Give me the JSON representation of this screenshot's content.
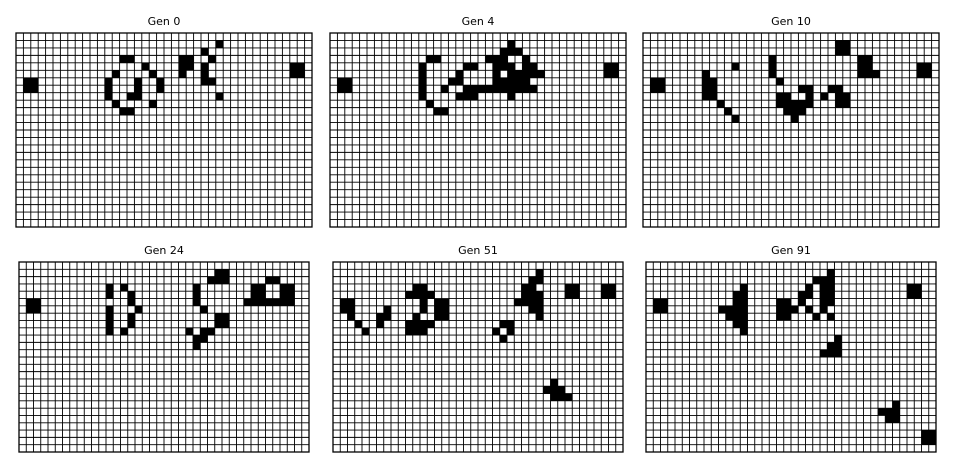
{
  "grid": {
    "cols": 40,
    "rows": 26,
    "alive_color": "#000000",
    "dead_color": "#ffffff",
    "line_color": "#000000"
  },
  "panels": [
    {
      "title": "Gen 0",
      "cells": [
        [
          27,
          1
        ],
        [
          25,
          2
        ],
        [
          14,
          3
        ],
        [
          15,
          3
        ],
        [
          22,
          3
        ],
        [
          23,
          3
        ],
        [
          26,
          3
        ],
        [
          17,
          4
        ],
        [
          22,
          4
        ],
        [
          23,
          4
        ],
        [
          25,
          4
        ],
        [
          37,
          4
        ],
        [
          38,
          4
        ],
        [
          13,
          5
        ],
        [
          18,
          5
        ],
        [
          22,
          5
        ],
        [
          25,
          5
        ],
        [
          37,
          5
        ],
        [
          38,
          5
        ],
        [
          1,
          6
        ],
        [
          2,
          6
        ],
        [
          12,
          6
        ],
        [
          16,
          6
        ],
        [
          19,
          6
        ],
        [
          25,
          6
        ],
        [
          26,
          6
        ],
        [
          1,
          7
        ],
        [
          2,
          7
        ],
        [
          12,
          7
        ],
        [
          16,
          7
        ],
        [
          19,
          7
        ],
        [
          12,
          8
        ],
        [
          15,
          8
        ],
        [
          16,
          8
        ],
        [
          27,
          8
        ],
        [
          13,
          9
        ],
        [
          18,
          9
        ],
        [
          14,
          10
        ],
        [
          15,
          10
        ]
      ]
    },
    {
      "title": "Gen 4",
      "cells": [
        [
          24,
          1
        ],
        [
          23,
          2
        ],
        [
          24,
          2
        ],
        [
          25,
          2
        ],
        [
          13,
          3
        ],
        [
          14,
          3
        ],
        [
          21,
          3
        ],
        [
          22,
          3
        ],
        [
          23,
          3
        ],
        [
          26,
          3
        ],
        [
          12,
          4
        ],
        [
          18,
          4
        ],
        [
          19,
          4
        ],
        [
          22,
          4
        ],
        [
          23,
          4
        ],
        [
          24,
          4
        ],
        [
          26,
          4
        ],
        [
          27,
          4
        ],
        [
          37,
          4
        ],
        [
          38,
          4
        ],
        [
          12,
          5
        ],
        [
          17,
          5
        ],
        [
          22,
          5
        ],
        [
          24,
          5
        ],
        [
          25,
          5
        ],
        [
          26,
          5
        ],
        [
          27,
          5
        ],
        [
          28,
          5
        ],
        [
          37,
          5
        ],
        [
          38,
          5
        ],
        [
          1,
          6
        ],
        [
          2,
          6
        ],
        [
          12,
          6
        ],
        [
          16,
          6
        ],
        [
          17,
          6
        ],
        [
          22,
          6
        ],
        [
          23,
          6
        ],
        [
          24,
          6
        ],
        [
          25,
          6
        ],
        [
          26,
          6
        ],
        [
          1,
          7
        ],
        [
          2,
          7
        ],
        [
          12,
          7
        ],
        [
          15,
          7
        ],
        [
          18,
          7
        ],
        [
          19,
          7
        ],
        [
          20,
          7
        ],
        [
          21,
          7
        ],
        [
          22,
          7
        ],
        [
          23,
          7
        ],
        [
          24,
          7
        ],
        [
          25,
          7
        ],
        [
          26,
          7
        ],
        [
          27,
          7
        ],
        [
          12,
          8
        ],
        [
          17,
          8
        ],
        [
          18,
          8
        ],
        [
          19,
          8
        ],
        [
          24,
          8
        ],
        [
          13,
          9
        ],
        [
          14,
          10
        ],
        [
          15,
          10
        ]
      ]
    },
    {
      "title": "Gen 10",
      "cells": [
        [
          26,
          1
        ],
        [
          27,
          1
        ],
        [
          26,
          2
        ],
        [
          27,
          2
        ],
        [
          17,
          3
        ],
        [
          29,
          3
        ],
        [
          30,
          3
        ],
        [
          12,
          4
        ],
        [
          17,
          4
        ],
        [
          29,
          4
        ],
        [
          30,
          4
        ],
        [
          37,
          4
        ],
        [
          38,
          4
        ],
        [
          8,
          5
        ],
        [
          17,
          5
        ],
        [
          29,
          5
        ],
        [
          30,
          5
        ],
        [
          31,
          5
        ],
        [
          37,
          5
        ],
        [
          38,
          5
        ],
        [
          1,
          6
        ],
        [
          2,
          6
        ],
        [
          8,
          6
        ],
        [
          9,
          6
        ],
        [
          18,
          6
        ],
        [
          1,
          7
        ],
        [
          2,
          7
        ],
        [
          8,
          7
        ],
        [
          9,
          7
        ],
        [
          21,
          7
        ],
        [
          22,
          7
        ],
        [
          25,
          7
        ],
        [
          26,
          7
        ],
        [
          8,
          8
        ],
        [
          9,
          8
        ],
        [
          18,
          8
        ],
        [
          19,
          8
        ],
        [
          22,
          8
        ],
        [
          24,
          8
        ],
        [
          26,
          8
        ],
        [
          27,
          8
        ],
        [
          10,
          9
        ],
        [
          18,
          9
        ],
        [
          19,
          9
        ],
        [
          20,
          9
        ],
        [
          21,
          9
        ],
        [
          22,
          9
        ],
        [
          26,
          9
        ],
        [
          27,
          9
        ],
        [
          11,
          10
        ],
        [
          19,
          10
        ],
        [
          20,
          10
        ],
        [
          21,
          10
        ],
        [
          12,
          11
        ],
        [
          20,
          11
        ]
      ]
    },
    {
      "title": "Gen 24",
      "cells": [
        [
          27,
          1
        ],
        [
          28,
          1
        ],
        [
          26,
          2
        ],
        [
          27,
          2
        ],
        [
          28,
          2
        ],
        [
          34,
          2
        ],
        [
          35,
          2
        ],
        [
          12,
          3
        ],
        [
          14,
          3
        ],
        [
          24,
          3
        ],
        [
          32,
          3
        ],
        [
          33,
          3
        ],
        [
          36,
          3
        ],
        [
          37,
          3
        ],
        [
          12,
          4
        ],
        [
          15,
          4
        ],
        [
          24,
          4
        ],
        [
          32,
          4
        ],
        [
          33,
          4
        ],
        [
          36,
          4
        ],
        [
          37,
          4
        ],
        [
          1,
          5
        ],
        [
          2,
          5
        ],
        [
          15,
          5
        ],
        [
          24,
          5
        ],
        [
          31,
          5
        ],
        [
          32,
          5
        ],
        [
          33,
          5
        ],
        [
          34,
          5
        ],
        [
          35,
          5
        ],
        [
          36,
          5
        ],
        [
          37,
          5
        ],
        [
          1,
          6
        ],
        [
          2,
          6
        ],
        [
          12,
          6
        ],
        [
          16,
          6
        ],
        [
          25,
          6
        ],
        [
          12,
          7
        ],
        [
          15,
          7
        ],
        [
          27,
          7
        ],
        [
          28,
          7
        ],
        [
          12,
          8
        ],
        [
          15,
          8
        ],
        [
          27,
          8
        ],
        [
          28,
          8
        ],
        [
          12,
          9
        ],
        [
          14,
          9
        ],
        [
          23,
          9
        ],
        [
          25,
          9
        ],
        [
          26,
          9
        ],
        [
          24,
          10
        ],
        [
          25,
          10
        ],
        [
          24,
          11
        ]
      ]
    },
    {
      "title": "Gen 51",
      "cells": [
        [
          28,
          1
        ],
        [
          27,
          2
        ],
        [
          28,
          2
        ],
        [
          11,
          3
        ],
        [
          12,
          3
        ],
        [
          26,
          3
        ],
        [
          27,
          3
        ],
        [
          32,
          3
        ],
        [
          33,
          3
        ],
        [
          37,
          3
        ],
        [
          38,
          3
        ],
        [
          10,
          4
        ],
        [
          11,
          4
        ],
        [
          12,
          4
        ],
        [
          13,
          4
        ],
        [
          26,
          4
        ],
        [
          27,
          4
        ],
        [
          28,
          4
        ],
        [
          32,
          4
        ],
        [
          33,
          4
        ],
        [
          37,
          4
        ],
        [
          38,
          4
        ],
        [
          1,
          5
        ],
        [
          2,
          5
        ],
        [
          12,
          5
        ],
        [
          14,
          5
        ],
        [
          15,
          5
        ],
        [
          25,
          5
        ],
        [
          26,
          5
        ],
        [
          27,
          5
        ],
        [
          28,
          5
        ],
        [
          1,
          6
        ],
        [
          2,
          6
        ],
        [
          7,
          6
        ],
        [
          12,
          6
        ],
        [
          14,
          6
        ],
        [
          15,
          6
        ],
        [
          27,
          6
        ],
        [
          28,
          6
        ],
        [
          2,
          7
        ],
        [
          6,
          7
        ],
        [
          7,
          7
        ],
        [
          11,
          7
        ],
        [
          14,
          7
        ],
        [
          15,
          7
        ],
        [
          28,
          7
        ],
        [
          3,
          8
        ],
        [
          6,
          8
        ],
        [
          10,
          8
        ],
        [
          11,
          8
        ],
        [
          12,
          8
        ],
        [
          13,
          8
        ],
        [
          23,
          8
        ],
        [
          24,
          8
        ],
        [
          4,
          9
        ],
        [
          10,
          9
        ],
        [
          11,
          9
        ],
        [
          12,
          9
        ],
        [
          22,
          9
        ],
        [
          24,
          9
        ],
        [
          23,
          10
        ],
        [
          30,
          16
        ],
        [
          29,
          17
        ],
        [
          30,
          17
        ],
        [
          31,
          17
        ],
        [
          30,
          18
        ],
        [
          31,
          18
        ],
        [
          32,
          18
        ]
      ]
    },
    {
      "title": "Gen 91",
      "cells": [
        [
          25,
          1
        ],
        [
          23,
          2
        ],
        [
          24,
          2
        ],
        [
          25,
          2
        ],
        [
          13,
          3
        ],
        [
          22,
          3
        ],
        [
          24,
          3
        ],
        [
          25,
          3
        ],
        [
          36,
          3
        ],
        [
          37,
          3
        ],
        [
          12,
          4
        ],
        [
          13,
          4
        ],
        [
          21,
          4
        ],
        [
          22,
          4
        ],
        [
          24,
          4
        ],
        [
          25,
          4
        ],
        [
          36,
          4
        ],
        [
          37,
          4
        ],
        [
          1,
          5
        ],
        [
          2,
          5
        ],
        [
          12,
          5
        ],
        [
          13,
          5
        ],
        [
          18,
          5
        ],
        [
          19,
          5
        ],
        [
          21,
          5
        ],
        [
          24,
          5
        ],
        [
          25,
          5
        ],
        [
          1,
          6
        ],
        [
          2,
          6
        ],
        [
          10,
          6
        ],
        [
          11,
          6
        ],
        [
          12,
          6
        ],
        [
          13,
          6
        ],
        [
          18,
          6
        ],
        [
          19,
          6
        ],
        [
          20,
          6
        ],
        [
          22,
          6
        ],
        [
          24,
          6
        ],
        [
          11,
          7
        ],
        [
          12,
          7
        ],
        [
          13,
          7
        ],
        [
          18,
          7
        ],
        [
          19,
          7
        ],
        [
          23,
          7
        ],
        [
          25,
          7
        ],
        [
          12,
          8
        ],
        [
          13,
          8
        ],
        [
          13,
          9
        ],
        [
          26,
          10
        ],
        [
          25,
          11
        ],
        [
          26,
          11
        ],
        [
          24,
          12
        ],
        [
          25,
          12
        ],
        [
          26,
          12
        ],
        [
          34,
          19
        ],
        [
          32,
          20
        ],
        [
          33,
          20
        ],
        [
          34,
          20
        ],
        [
          33,
          21
        ],
        [
          34,
          21
        ],
        [
          38,
          23
        ],
        [
          39,
          23
        ],
        [
          38,
          24
        ],
        [
          39,
          24
        ]
      ]
    }
  ]
}
